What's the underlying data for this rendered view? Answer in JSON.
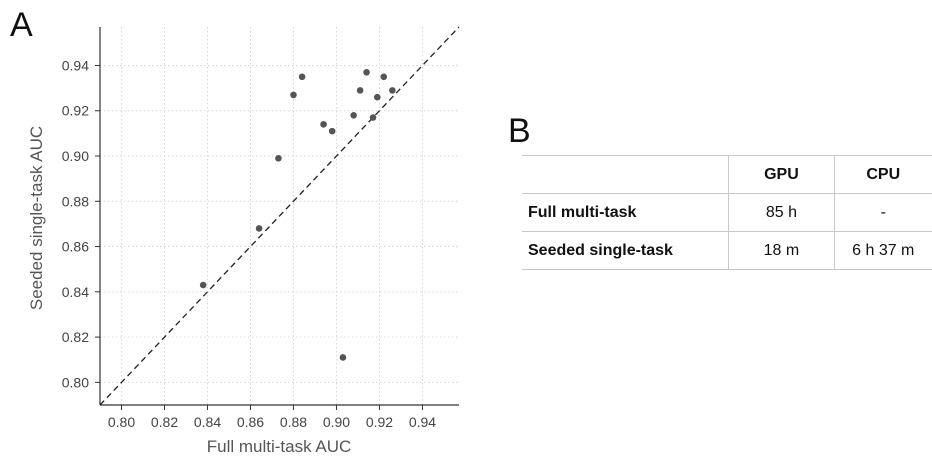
{
  "panels": {
    "a_label": "A",
    "b_label": "B"
  },
  "chart_data": {
    "type": "scatter",
    "title": "",
    "xlabel": "Full multi-task AUC",
    "ylabel": "Seeded single-task AUC",
    "xlim": [
      0.79,
      0.957
    ],
    "ylim": [
      0.79,
      0.957
    ],
    "xticks": [
      "0.80",
      "0.82",
      "0.84",
      "0.86",
      "0.88",
      "0.90",
      "0.92",
      "0.94"
    ],
    "yticks": [
      "0.80",
      "0.82",
      "0.84",
      "0.86",
      "0.88",
      "0.90",
      "0.92",
      "0.94"
    ],
    "grid": true,
    "diagonal": "y = x (dashed)",
    "point_color": "#555555",
    "points": [
      {
        "x": 0.838,
        "y": 0.843
      },
      {
        "x": 0.864,
        "y": 0.868
      },
      {
        "x": 0.873,
        "y": 0.899
      },
      {
        "x": 0.88,
        "y": 0.927
      },
      {
        "x": 0.884,
        "y": 0.935
      },
      {
        "x": 0.894,
        "y": 0.914
      },
      {
        "x": 0.898,
        "y": 0.911
      },
      {
        "x": 0.903,
        "y": 0.811
      },
      {
        "x": 0.908,
        "y": 0.918
      },
      {
        "x": 0.911,
        "y": 0.929
      },
      {
        "x": 0.914,
        "y": 0.937
      },
      {
        "x": 0.917,
        "y": 0.917
      },
      {
        "x": 0.919,
        "y": 0.926
      },
      {
        "x": 0.922,
        "y": 0.935
      },
      {
        "x": 0.926,
        "y": 0.929
      }
    ]
  },
  "table": {
    "columns": [
      "",
      "GPU",
      "CPU"
    ],
    "rows": [
      {
        "label": "Full multi-task",
        "gpu": "85 h",
        "cpu": "-"
      },
      {
        "label": "Seeded single-task",
        "gpu": "18 m",
        "cpu": "6 h 37 m"
      }
    ]
  }
}
